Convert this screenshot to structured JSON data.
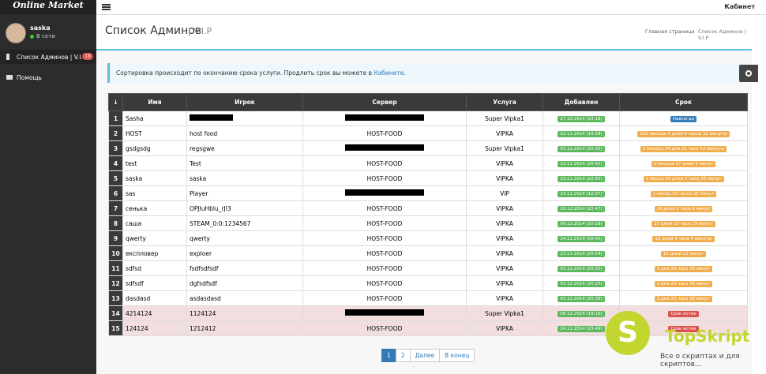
{
  "sidebar": {
    "brand": "Online Market",
    "user": "saska",
    "status": "В сети",
    "menu": [
      {
        "label": "Список Админов | V.I.P",
        "badge": "18"
      },
      {
        "label": "Помощь"
      }
    ]
  },
  "topbar": {
    "account": "Кабинет"
  },
  "header": {
    "title": "Список Админов",
    "subtitle": "| V.I.P",
    "breadcrumb": [
      "Главная страница",
      "Список Админов | V.I.P"
    ]
  },
  "notice": {
    "text": "Сортировка происходит по окончанию срока услуги. Продлить срок вы можете в",
    "link": "Кабинете",
    "end": "."
  },
  "table": {
    "columns": [
      "Имя",
      "Игрок",
      "Сервер",
      "Услуга",
      "Добавлен",
      "Срок"
    ],
    "rows": [
      [
        "1",
        "Sasha",
        null,
        null,
        "Super Vipka1",
        "27.10.2014 [23:18]",
        "Навсегда",
        "#337ab7",
        "#ffffff"
      ],
      [
        "2",
        "HOST",
        "host food",
        "HOST-FOOD",
        "VIPKA",
        "22.11.2014 [18:58]",
        "263 месяца 9 дней 6 часов 32 минуты",
        "#f0ad4e",
        "#ffffff"
      ],
      [
        "3",
        "gsdgsdg",
        "regsgwe",
        null,
        "Super Vipka1",
        "03.12.2014 [20:33]",
        "3 месяца 24 дня 22 часа 42 минуты",
        "#f0ad4e",
        "#ffffff"
      ],
      [
        "4",
        "test",
        "Test",
        "HOST-FOOD",
        "VIPKA",
        "23.11.2014 [20:42]",
        "3 месяца 27 дней 5 минут",
        "#f0ad4e",
        "#ffffff"
      ],
      [
        "5",
        "saska",
        "saska",
        "HOST-FOOD",
        "VIPKA",
        "23.11.2014 [22:55]",
        "1 месяц 29 дней 2 часа 38 минут",
        "#f0ad4e",
        "#ffffff"
      ],
      [
        "6",
        "sas",
        "Player",
        null,
        "VIP",
        "23.11.2014 [12:07]",
        "1 месяц 15 часов 25 минут",
        "#f0ad4e",
        "#ffffff"
      ],
      [
        "7",
        "сенька",
        "OPJluHblu_rJl3",
        "HOST-FOOD",
        "VIPKA",
        "10.12.2014 [22:47]",
        "29 дней 2 часа 6 минут",
        "#f0ad4e",
        "#ffffff"
      ],
      [
        "8",
        "саша",
        "STEAM_0:0:1234567",
        "HOST-FOOD",
        "VIPKA",
        "09.12.2014 [20:18]",
        "27 дней 23 часа 29 минут",
        "#f0ad4e",
        "#ffffff"
      ],
      [
        "9",
        "qwerty",
        "qwerty",
        "HOST-FOOD",
        "VIPKA",
        "24.11.2014 [00:45]",
        "12 дней 4 часа 4 минуты",
        "#f0ad4e",
        "#ffffff"
      ],
      [
        "10",
        "експловер",
        "exploer",
        "HOST-FOOD",
        "VIPKA",
        "23.11.2014 [20:54]",
        "12 дней 12 минут",
        "#f0ad4e",
        "#ffffff"
      ],
      [
        "11",
        "sdfsd",
        "fsdfsdfsdf",
        "HOST-FOOD",
        "VIPKA",
        "03.12.2014 [20:20]",
        "3 дня 23 часа 39 минут",
        "#f0ad4e",
        "#ffffff"
      ],
      [
        "12",
        "sdfsdf",
        "dgfsdfsdf",
        "HOST-FOOD",
        "VIPKA",
        "03.12.2014 [20:20]",
        "3 дня 23 часа 39 минут",
        "#f0ad4e",
        "#ffffff"
      ],
      [
        "13",
        "dasdasd",
        "asdasdasd",
        "HOST-FOOD",
        "VIPKA",
        "03.12.2014 [20:39]",
        "3 дня 23 часа 38 минут",
        "#f0ad4e",
        "#ffffff"
      ],
      [
        "14",
        "4214124",
        "1124124",
        null,
        "Super Vipka1",
        "06.12.2014 [19:16]",
        "Срок истек",
        "#d9534f",
        "#f2dede"
      ],
      [
        "15",
        "124124",
        "1212412",
        "HOST-FOOD",
        "VIPKA",
        "24.11.2014 [23:49]",
        "Срок истек",
        "#d9534f",
        "#f2dede"
      ]
    ]
  },
  "pagination": [
    "1",
    "2",
    "Далее",
    "В конец"
  ],
  "watermark": {
    "logo": "S",
    "name": "TopSkript",
    "tagline": "Все о скриптах и для скриптов..."
  }
}
